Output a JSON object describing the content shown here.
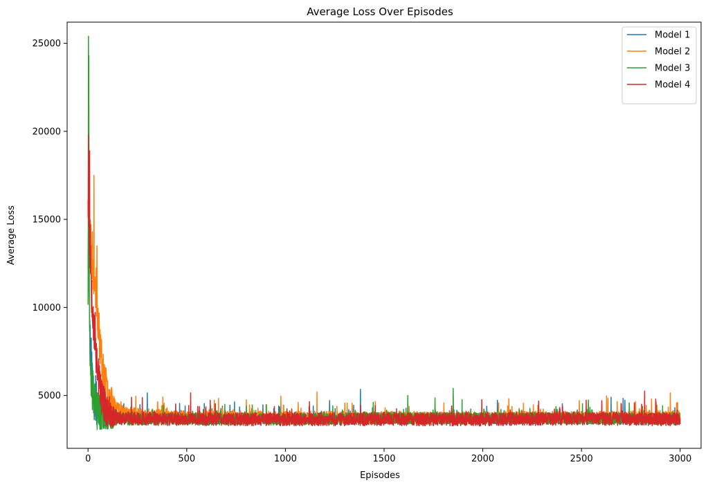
{
  "chart_data": {
    "type": "line",
    "title": "Average Loss Over Episodes",
    "xlabel": "Episodes",
    "ylabel": "Average Loss",
    "xlim": [
      -106,
      3106
    ],
    "ylim": [
      2000,
      26200
    ],
    "xticks": [
      0,
      500,
      1000,
      1500,
      2000,
      2500,
      3000
    ],
    "yticks": [
      5000,
      10000,
      15000,
      20000,
      25000
    ],
    "xtick_labels": [
      "0",
      "500",
      "1000",
      "1500",
      "2000",
      "2500",
      "3000"
    ],
    "ytick_labels": [
      "5000",
      "10000",
      "15000",
      "20000",
      "25000"
    ],
    "grid": false,
    "legend_position": "top-right",
    "series": [
      {
        "name": "Model 1",
        "color": "#1f77b4",
        "seed": 11,
        "x": [
          0,
          3,
          8,
          15,
          25,
          40,
          60,
          80,
          100,
          150,
          200,
          300,
          500,
          1000,
          1500,
          2000,
          2500,
          3000
        ],
        "y": [
          13000,
          15500,
          9000,
          7000,
          5500,
          4600,
          4200,
          4000,
          3900,
          3800,
          3750,
          3750,
          3700,
          3700,
          3700,
          3700,
          3700,
          3700
        ],
        "noise": 330,
        "spikes": [
          [
            300,
            5150
          ],
          [
            1380,
            5350
          ],
          [
            1850,
            5000
          ],
          [
            2650,
            4900
          ]
        ]
      },
      {
        "name": "Model 2",
        "color": "#ff7f0e",
        "seed": 23,
        "x": [
          0,
          10,
          25,
          40,
          60,
          80,
          100,
          130,
          160,
          200,
          300,
          500,
          1000,
          1500,
          2000,
          2500,
          3000
        ],
        "y": [
          16000,
          14000,
          12500,
          11000,
          8000,
          6200,
          5200,
          4600,
          4200,
          4000,
          3850,
          3800,
          3750,
          3750,
          3750,
          3750,
          3800
        ],
        "noise": 360,
        "spikes": [
          [
            30,
            17500
          ],
          [
            45,
            13500
          ],
          [
            1160,
            5200
          ],
          [
            2950,
            5150
          ]
        ]
      },
      {
        "name": "Model 3",
        "color": "#2ca02c",
        "seed": 37,
        "x": [
          0,
          2,
          5,
          10,
          20,
          30,
          50,
          70,
          100,
          200,
          500,
          1000,
          1500,
          2000,
          2500,
          3000
        ],
        "y": [
          11000,
          18000,
          12000,
          8000,
          5500,
          4500,
          4000,
          3800,
          3700,
          3650,
          3650,
          3650,
          3700,
          3700,
          3700,
          3650
        ],
        "noise": 340,
        "spikes": [
          [
            2,
            25400
          ],
          [
            4,
            24300
          ],
          [
            1850,
            5400
          ],
          [
            1620,
            5000
          ]
        ]
      },
      {
        "name": "Model 4",
        "color": "#d62728",
        "seed": 53,
        "x": [
          0,
          5,
          15,
          30,
          45,
          60,
          80,
          100,
          130,
          200,
          500,
          1000,
          1500,
          2000,
          2500,
          3000
        ],
        "y": [
          17000,
          15000,
          12000,
          9000,
          7000,
          5500,
          4500,
          4000,
          3800,
          3700,
          3650,
          3650,
          3650,
          3650,
          3700,
          3650
        ],
        "noise": 380,
        "spikes": [
          [
            2,
            19800
          ],
          [
            8,
            18900
          ],
          [
            520,
            5150
          ],
          [
            2820,
            5250
          ]
        ]
      }
    ]
  }
}
